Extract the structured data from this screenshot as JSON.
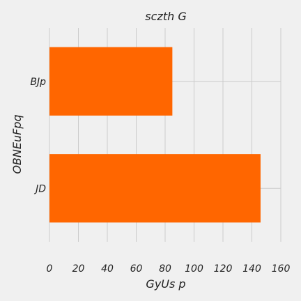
{
  "chart_data": {
    "type": "bar",
    "orientation": "horizontal",
    "title": "sczth G",
    "xlabel": "GyUs p",
    "ylabel": "OBNEuFpq",
    "categories": [
      "JD",
      "BJp"
    ],
    "values": [
      146,
      85
    ],
    "xlim": [
      0,
      160
    ],
    "xticks": [
      0,
      20,
      40,
      60,
      80,
      100,
      120,
      140,
      160
    ],
    "grid": true,
    "bar_color": "#ff6600",
    "background": "#f0f0f0"
  }
}
